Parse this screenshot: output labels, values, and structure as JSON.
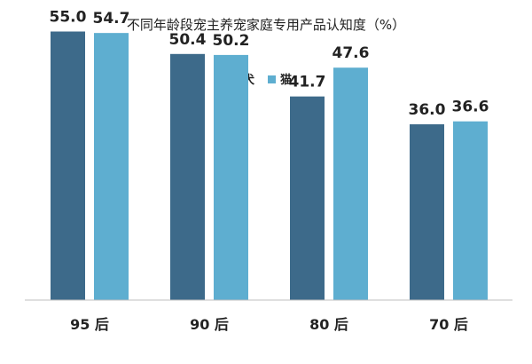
{
  "chart_data": {
    "type": "bar",
    "title": "不同年龄段宠主养宠家庭专用产品认知度（%）",
    "categories": [
      "95 后",
      "90 后",
      "80 后",
      "70 后"
    ],
    "series": [
      {
        "name": "犬",
        "values": [
          55.0,
          50.4,
          41.7,
          36.0
        ],
        "color": "#3d6a8a"
      },
      {
        "name": "猫",
        "values": [
          54.7,
          50.2,
          47.6,
          36.6
        ],
        "color": "#5eaed0"
      }
    ],
    "value_format": "1 decimal",
    "ylim": [
      0,
      60
    ],
    "grid": false,
    "legend_position": "top-center",
    "axis_color": "#bfbfbf"
  }
}
